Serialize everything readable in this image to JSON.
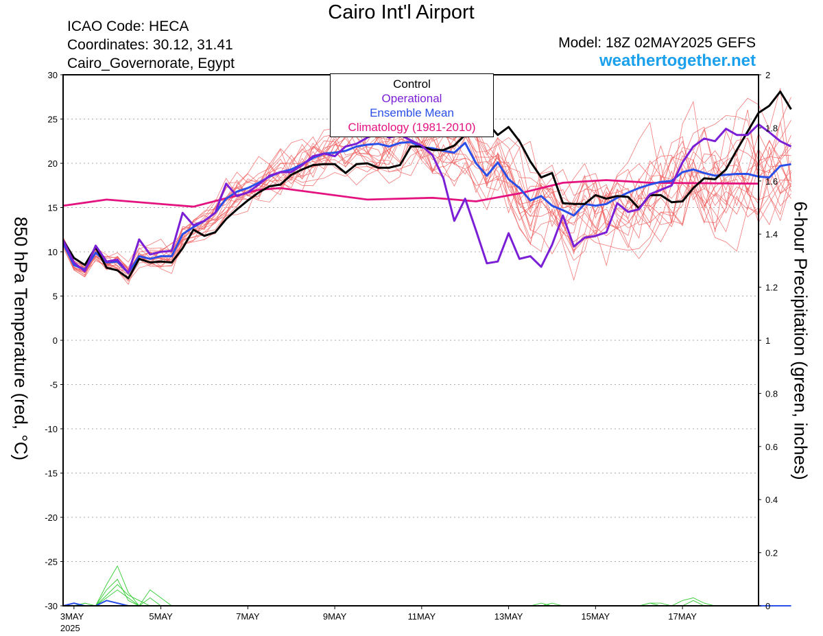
{
  "header": {
    "title": "Cairo Int'l Airport",
    "icao": "ICAO Code: HECA",
    "coords": "Coordinates: 30.12, 31.41",
    "region": "Cairo_Governorate, Egypt",
    "model": "Model: 18Z 02MAY2025 GEFS",
    "site": "weathertogether.net"
  },
  "legend": [
    "Control",
    "Operational",
    "Ensemble Mean",
    "Climatology (1981-2010)"
  ],
  "colors": {
    "control": "#000000",
    "operational": "#7a1fd6",
    "mean": "#2a4ee8",
    "climatology": "#e3127f",
    "members": "#f06060",
    "precip": "#33cc33",
    "site": "#1aa0ec"
  },
  "chart_data": {
    "type": "line",
    "ylabel": "850 hPa Temperature (red, °C)",
    "y2label": "6-hour Precipitation (green, inches)",
    "ylim": [
      -30,
      30
    ],
    "y2lim": [
      0,
      2
    ],
    "xlim": [
      0,
      96
    ],
    "x_unit": "hours after 18Z 02MAY2025",
    "yticks": [
      30,
      25,
      20,
      15,
      10,
      5,
      0,
      -5,
      -10,
      -15,
      -20,
      -25,
      -30
    ],
    "y2ticks": [
      2,
      1.8,
      1.6,
      1.4,
      1.2,
      1,
      0.8,
      0.6,
      0.4,
      0.2,
      0
    ],
    "xticks": [
      {
        "x": 6,
        "label": "3MAY",
        "sub": "2025"
      },
      {
        "x": 54,
        "label": "5MAY"
      },
      {
        "x": 102,
        "label": "7MAY"
      },
      {
        "x": 150,
        "label": "9MAY"
      },
      {
        "x": 198,
        "label": "11MAY"
      },
      {
        "x": 246,
        "label": "13MAY"
      },
      {
        "x": 294,
        "label": "15MAY"
      },
      {
        "x": 342,
        "label": "17MAY"
      }
    ],
    "grid": true,
    "step_hours": 6,
    "series": {
      "control": [
        11.3,
        9.3,
        8.5,
        10.5,
        8.2,
        7.9,
        7.0,
        9.2,
        8.8,
        8.9,
        8.8,
        10.4,
        12.5,
        11.8,
        12.2,
        13.7,
        14.8,
        15.8,
        16.7,
        17.4,
        17.6,
        18.7,
        19.3,
        19.8,
        19.9,
        19.9,
        18.9,
        19.9,
        20.0,
        19.5,
        19.5,
        19.8,
        21.9,
        21.9,
        21.5,
        21.5,
        22.0,
        23.2,
        24.1,
        24.6,
        23.2,
        24.1,
        22.5,
        20.2,
        18.4,
        18.9,
        15.5,
        15.4,
        15.4,
        16.4,
        16.0,
        16.3,
        16.2,
        14.9,
        16.4,
        16.4,
        15.6,
        15.7,
        17.2,
        18.3,
        18.2,
        19.3,
        21.5,
        23.6,
        25.7,
        26.5,
        28.1,
        26.1
      ],
      "operational": [
        11.3,
        8.8,
        7.8,
        10.7,
        8.9,
        9.1,
        7.6,
        11.4,
        9.7,
        10.0,
        10.1,
        14.4,
        13.0,
        13.5,
        14.4,
        17.7,
        16.3,
        16.7,
        17.6,
        18.6,
        19.0,
        19.0,
        19.8,
        20.8,
        21.1,
        20.8,
        21.9,
        22.2,
        22.9,
        23.6,
        22.9,
        23.2,
        22.6,
        22.0,
        20.9,
        18.3,
        13.5,
        16.0,
        12.4,
        8.7,
        8.9,
        12.1,
        9.2,
        9.5,
        8.3,
        10.8,
        14.1,
        10.6,
        11.6,
        11.8,
        12.2,
        15.5,
        14.5,
        14.8,
        16.5,
        17.0,
        17.5,
        20.1,
        21.9,
        22.8,
        22.5,
        23.9,
        23.2,
        23.2,
        24.4,
        23.5,
        22.5,
        21.9
      ],
      "mean": [
        11.0,
        8.5,
        8.0,
        9.9,
        8.8,
        8.9,
        7.6,
        9.5,
        9.2,
        9.5,
        9.5,
        12.0,
        12.8,
        13.5,
        14.4,
        16.0,
        16.8,
        17.2,
        17.8,
        18.5,
        19.0,
        19.3,
        19.9,
        20.6,
        21.1,
        21.2,
        21.4,
        21.9,
        22.1,
        22.2,
        21.9,
        22.3,
        22.4,
        21.8,
        21.7,
        21.4,
        21.2,
        22.3,
        20.0,
        18.6,
        20.1,
        18.2,
        17.2,
        15.8,
        16.3,
        15.2,
        14.7,
        14.1,
        15.4,
        15.2,
        15.4,
        16.1,
        16.7,
        17.2,
        17.6,
        17.9,
        18.0,
        19.0,
        19.3,
        18.9,
        18.6,
        18.7,
        18.8,
        18.8,
        18.5,
        18.4,
        19.7,
        19.9
      ],
      "climatology": [
        {
          "x": 0,
          "y": 15.2
        },
        {
          "x": 24,
          "y": 15.9
        },
        {
          "x": 72,
          "y": 15.1
        },
        {
          "x": 108,
          "y": 17.0
        },
        {
          "x": 120,
          "y": 17.2
        },
        {
          "x": 168,
          "y": 15.9
        },
        {
          "x": 204,
          "y": 16.1
        },
        {
          "x": 228,
          "y": 15.7
        },
        {
          "x": 252,
          "y": 16.6
        },
        {
          "x": 276,
          "y": 17.8
        },
        {
          "x": 300,
          "y": 18.1
        },
        {
          "x": 324,
          "y": 17.8
        },
        {
          "x": 384,
          "y": 17.7
        }
      ],
      "precip_mean": [
        0,
        0.01,
        0,
        0,
        0.02,
        0.01,
        0,
        0,
        0,
        0,
        0,
        0,
        0,
        0,
        0,
        0,
        0,
        0,
        0,
        0,
        0,
        0,
        0,
        0,
        0,
        0,
        0,
        0,
        0,
        0,
        0,
        0,
        0,
        0,
        0,
        0,
        0,
        0,
        0,
        0,
        0,
        0,
        0,
        0,
        0,
        0,
        0,
        0,
        0,
        0,
        0,
        0,
        0,
        0,
        0,
        0,
        0,
        0,
        0,
        0,
        0,
        0,
        0,
        0,
        0,
        0,
        0,
        0
      ],
      "precip_members": [
        [
          0,
          0,
          0.01,
          0,
          0.08,
          0.15,
          0.05,
          0,
          0.03,
          0,
          0,
          0,
          0,
          0,
          0,
          0,
          0,
          0,
          0,
          0,
          0,
          0,
          0,
          0,
          0,
          0,
          0,
          0,
          0,
          0,
          0,
          0,
          0,
          0,
          0,
          0,
          0,
          0,
          0,
          0,
          0,
          0,
          0,
          0,
          0.01,
          0,
          0,
          0,
          0,
          0,
          0,
          0,
          0,
          0,
          0,
          0,
          0,
          0,
          0,
          0,
          0,
          0,
          0,
          0,
          0,
          0,
          0,
          0
        ],
        [
          0,
          0,
          0,
          0,
          0.06,
          0.1,
          0.02,
          0,
          0.06,
          0.03,
          0,
          0,
          0,
          0,
          0,
          0,
          0,
          0,
          0,
          0,
          0,
          0,
          0,
          0,
          0,
          0,
          0,
          0,
          0,
          0,
          0,
          0,
          0,
          0,
          0,
          0,
          0,
          0,
          0,
          0,
          0,
          0,
          0,
          0,
          0,
          0,
          0,
          0,
          0,
          0,
          0,
          0,
          0,
          0,
          0.01,
          0,
          0,
          0,
          0.02,
          0,
          0,
          0,
          0,
          0,
          0,
          0,
          0,
          0
        ],
        [
          0,
          0,
          0.01,
          0,
          0.04,
          0.08,
          0.04,
          0.02,
          0,
          0,
          0,
          0,
          0,
          0,
          0,
          0,
          0,
          0,
          0,
          0,
          0,
          0,
          0,
          0,
          0,
          0,
          0,
          0,
          0,
          0,
          0,
          0,
          0,
          0,
          0,
          0,
          0,
          0,
          0,
          0,
          0,
          0,
          0,
          0,
          0,
          0.01,
          0,
          0,
          0,
          0,
          0,
          0,
          0,
          0,
          0,
          0,
          0,
          0.02,
          0.03,
          0.01,
          0,
          0,
          0,
          0,
          0,
          0,
          0,
          0
        ],
        [
          0,
          0,
          0,
          0,
          0.03,
          0.06,
          0.03,
          0,
          0,
          0,
          0,
          0,
          0,
          0,
          0,
          0,
          0,
          0,
          0,
          0,
          0,
          0,
          0,
          0,
          0,
          0,
          0,
          0,
          0,
          0,
          0,
          0,
          0,
          0,
          0,
          0,
          0,
          0,
          0,
          0,
          0,
          0,
          0,
          0,
          0,
          0,
          0,
          0,
          0,
          0,
          0,
          0,
          0,
          0,
          0.01,
          0.01,
          0,
          0,
          0,
          0,
          0,
          0,
          0,
          0,
          0,
          0,
          0,
          0
        ]
      ]
    }
  }
}
